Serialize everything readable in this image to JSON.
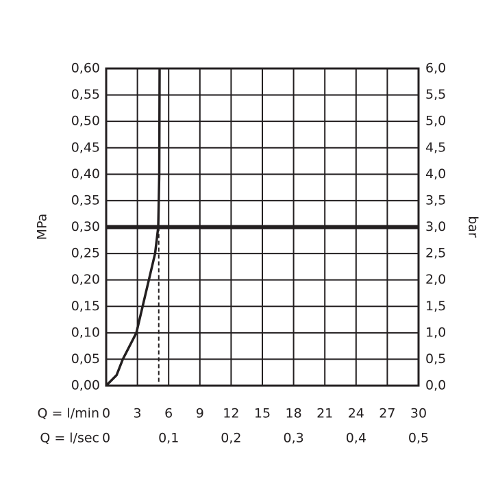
{
  "chart_data": {
    "type": "line",
    "x_label": "Q = l/min",
    "x2_label": "Q = l/sec",
    "y_label": "MPa",
    "y2_label": "bar",
    "xlim": [
      0,
      30
    ],
    "xticks": [
      0,
      3,
      6,
      9,
      12,
      15,
      18,
      21,
      24,
      27,
      30
    ],
    "x2lim": [
      0,
      0.5
    ],
    "x2ticks": [
      0,
      {
        "value": 0.1,
        "label": "0,1"
      },
      {
        "value": 0.2,
        "label": "0,2"
      },
      {
        "value": 0.3,
        "label": "0,3"
      },
      {
        "value": 0.4,
        "label": "0,4"
      },
      {
        "value": 0.5,
        "label": "0,5"
      }
    ],
    "ylim": [
      0,
      0.6
    ],
    "yticks": [
      {
        "value": 0,
        "label": "0,00"
      },
      {
        "value": 0.05,
        "label": "0,05"
      },
      {
        "value": 0.1,
        "label": "0,10"
      },
      {
        "value": 0.15,
        "label": "0,15"
      },
      {
        "value": 0.2,
        "label": "0,20"
      },
      {
        "value": 0.25,
        "label": "0,25"
      },
      {
        "value": 0.3,
        "label": "0,30"
      },
      {
        "value": 0.35,
        "label": "0,35"
      },
      {
        "value": 0.4,
        "label": "0,40"
      },
      {
        "value": 0.45,
        "label": "0,45"
      },
      {
        "value": 0.5,
        "label": "0,50"
      },
      {
        "value": 0.55,
        "label": "0,55"
      },
      {
        "value": 0.6,
        "label": "0,60"
      }
    ],
    "y2lim": [
      0,
      6
    ],
    "y2ticks": [
      {
        "value": 0,
        "label": "0,0"
      },
      {
        "value": 0.5,
        "label": "0,5"
      },
      {
        "value": 1,
        "label": "1,0"
      },
      {
        "value": 1.5,
        "label": "1,5"
      },
      {
        "value": 2,
        "label": "2,0"
      },
      {
        "value": 2.5,
        "label": "2,5"
      },
      {
        "value": 3,
        "label": "3,0"
      },
      {
        "value": 3.5,
        "label": "3,5"
      },
      {
        "value": 4,
        "label": "4,0"
      },
      {
        "value": 4.5,
        "label": "4,5"
      },
      {
        "value": 5,
        "label": "5,0"
      },
      {
        "value": 5.5,
        "label": "5,5"
      },
      {
        "value": 6,
        "label": "6,0"
      }
    ],
    "grid": true,
    "color": "#231f20",
    "x": [
      0,
      1,
      1.6,
      2.9,
      4.1,
      4.7,
      5.0,
      5.1,
      5.13
    ],
    "values": [
      0,
      0.02,
      0.05,
      0.1,
      0.2,
      0.25,
      0.3,
      0.4,
      0.6
    ],
    "hline": 0.3,
    "drop_line": {
      "x": 5.05,
      "y": 0.3
    }
  }
}
